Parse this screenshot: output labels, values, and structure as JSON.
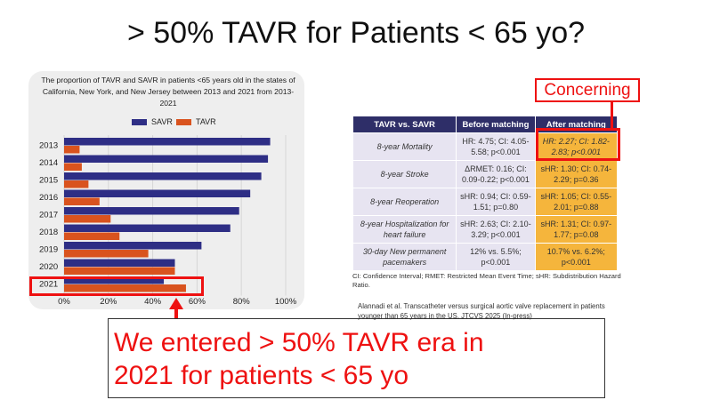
{
  "slide": {
    "title": "> 50% TAVR for Patients < 65 yo?",
    "callout_line1": "We entered > 50% TAVR era in",
    "callout_line2": "2021 for patients < 65 yo",
    "concerning_label": "Concerning"
  },
  "chart_data": {
    "type": "bar",
    "orientation": "horizontal",
    "title": "The proportion of TAVR and SAVR in patients <65 years old  in the states of California, New York, and New Jersey between 2013 and 2021 from 2013-2021",
    "categories": [
      "2013",
      "2014",
      "2015",
      "2016",
      "2017",
      "2018",
      "2019",
      "2020",
      "2021"
    ],
    "series": [
      {
        "name": "SAVR",
        "color": "#2e2e85",
        "values": [
          93,
          92,
          89,
          84,
          79,
          75,
          62,
          50,
          45
        ]
      },
      {
        "name": "TAVR",
        "color": "#d9531e",
        "values": [
          7,
          8,
          11,
          16,
          21,
          25,
          38,
          50,
          55
        ]
      }
    ],
    "xticks": [
      "0%",
      "20%",
      "40%",
      "60%",
      "80%",
      "100%"
    ],
    "xlim": [
      0,
      100
    ],
    "legend_position": "top",
    "grid": true
  },
  "table": {
    "headers": [
      "TAVR vs. SAVR",
      "Before matching",
      "After matching"
    ],
    "rows": [
      [
        "8-year Mortality",
        "HR: 4.75; CI: 4.05-5.58; p<0.001",
        "HR: 2.27; CI: 1.82-2.83; p<0.001"
      ],
      [
        "8-year Stroke",
        "ΔRMET: 0.16; CI: 0.09-0.22; p<0.001",
        "sHR: 1.30; CI: 0.74-2.29; p=0.36"
      ],
      [
        "8-year Reoperation",
        "sHR: 0.94; CI: 0.59-1.51; p=0.80",
        "sHR: 1.05; CI: 0.55-2.01; p=0.88"
      ],
      [
        "8-year Hospitalization for heart failure",
        "sHR: 2.63; CI: 2.10-3.29; p<0.001",
        "sHR: 1.31; CI: 0.97-1.77; p=0.08"
      ],
      [
        "30-day New permanent pacemakers",
        "12% vs. 5.5%; p<0.001",
        "10.7% vs. 6.2%; p<0.001"
      ]
    ],
    "footnote": "CI: Confidence Interval; RMET: Restricted Mean Event Time; sHR: Subdistribution Hazard Ratio.",
    "citation": "Alannadi et al. Transcatheter versus surgical aortic valve replacement in patients younger than 65 years in the US. JTCVS 2025 (In-press)"
  },
  "colors": {
    "accent": "#ee1111",
    "savr": "#2e2e85",
    "tavr": "#d9531e",
    "table_header": "#2e2e68",
    "highlight": "#f5b53c"
  }
}
